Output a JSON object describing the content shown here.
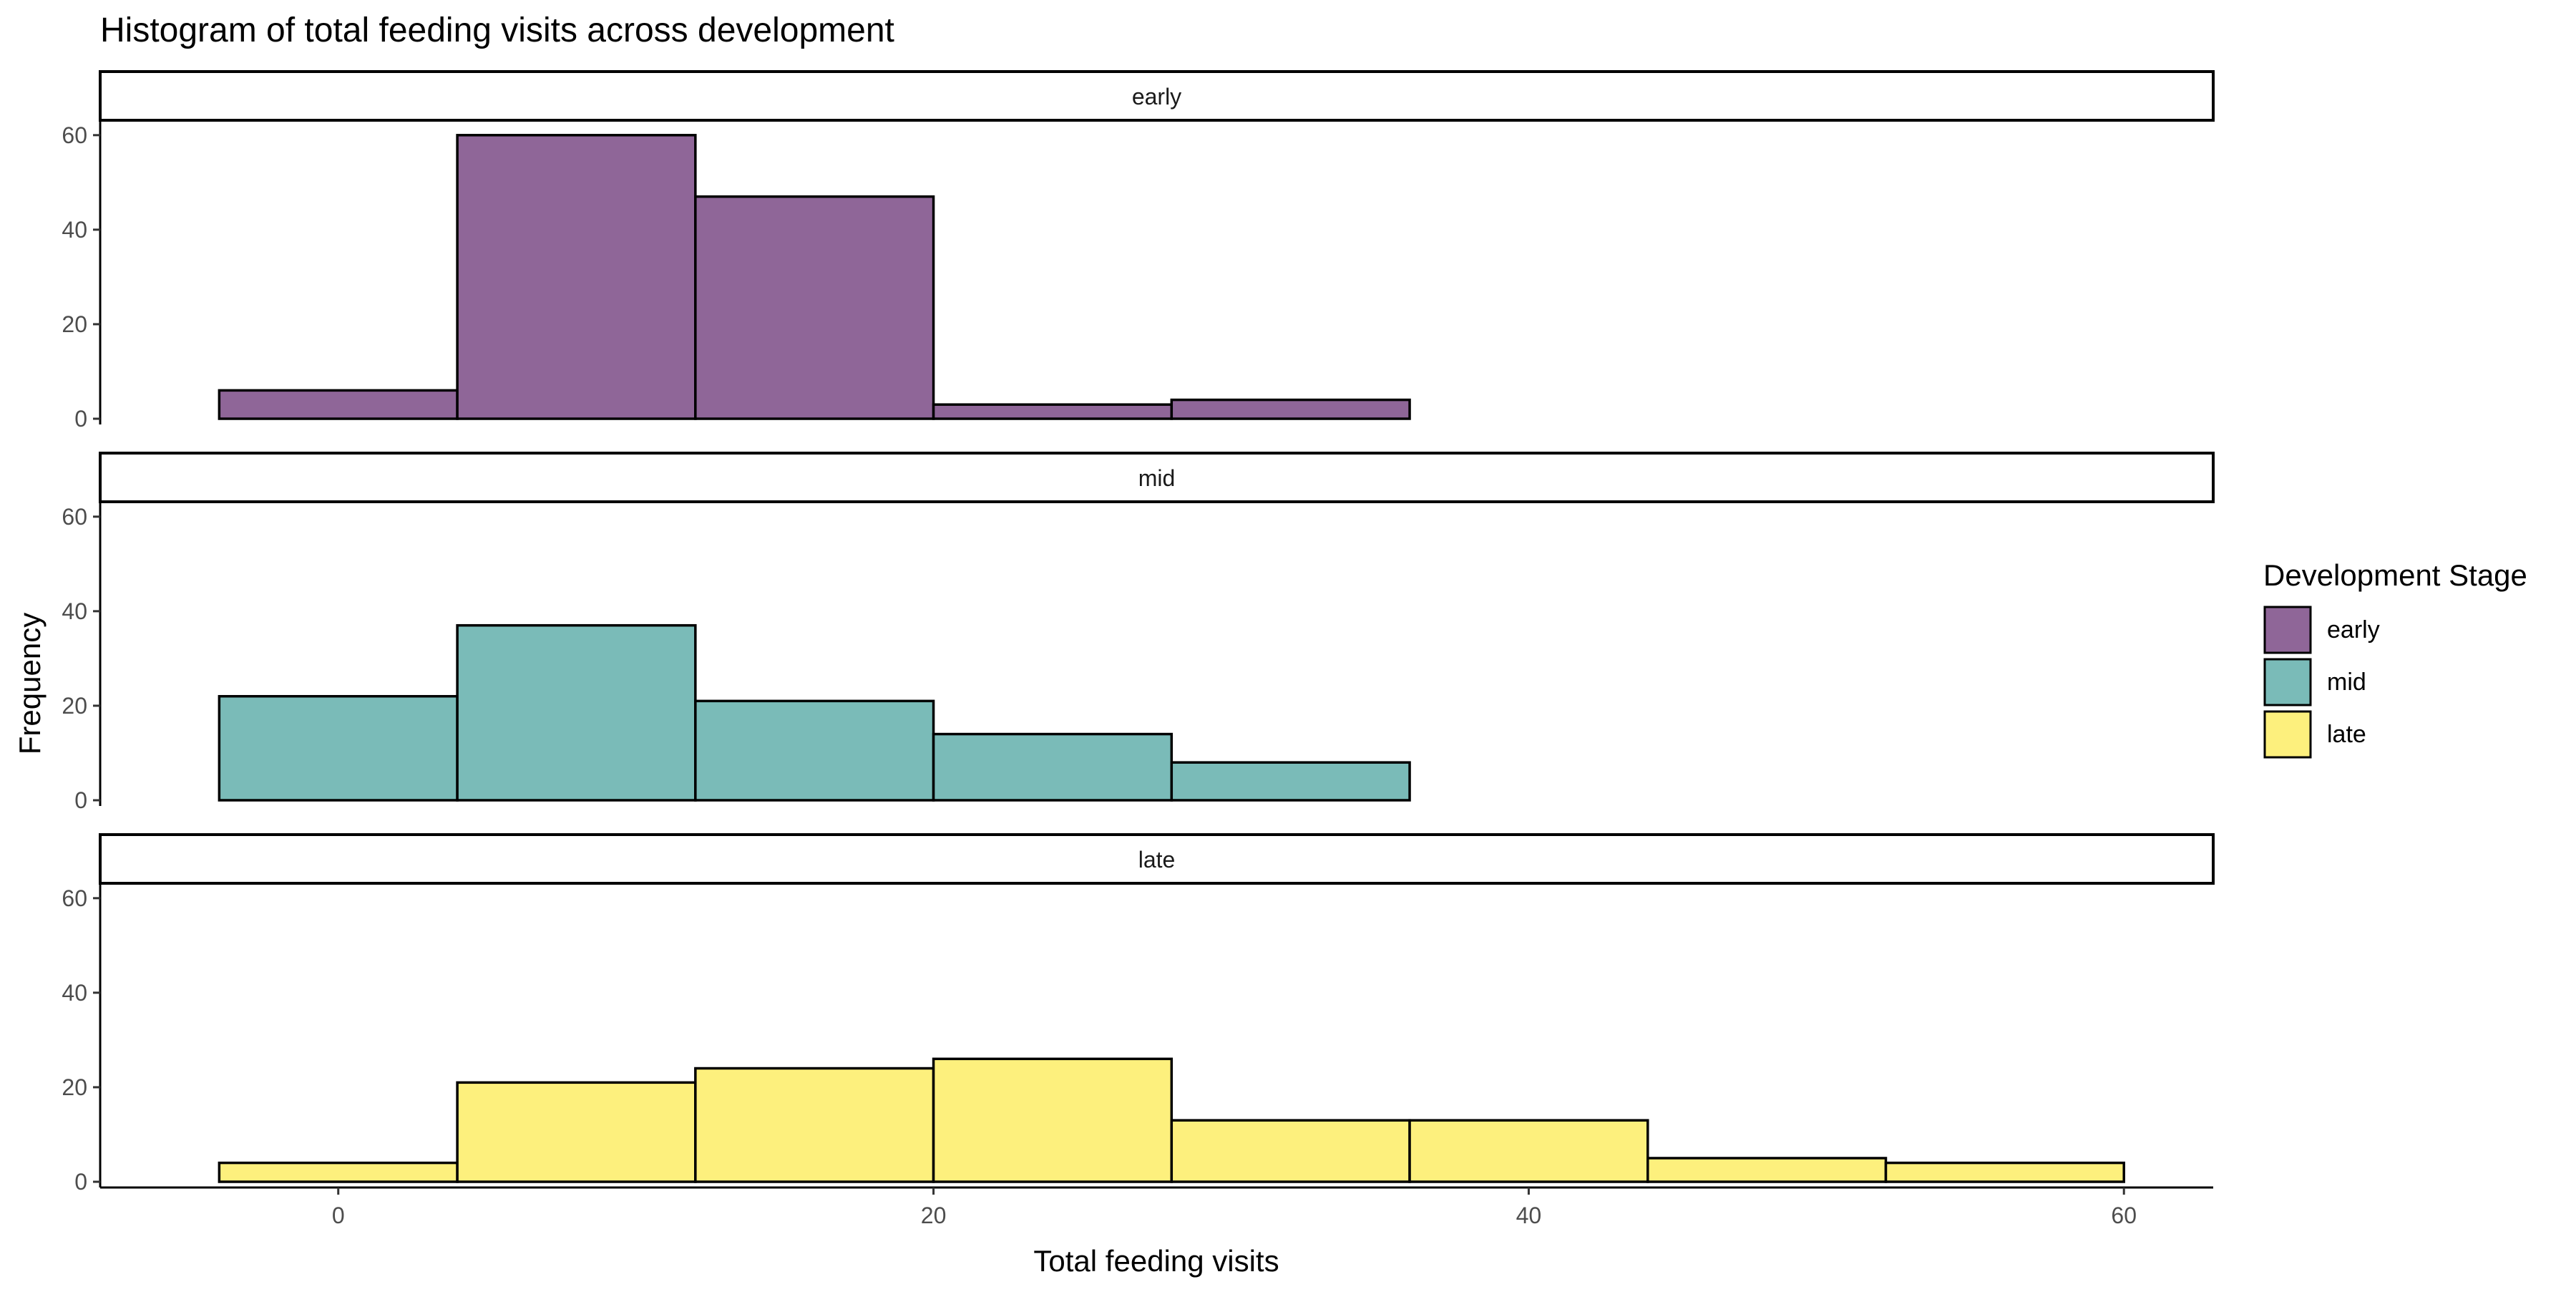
{
  "chart_data": {
    "type": "bar",
    "title": "Histogram of total feeding visits across development",
    "xlabel": "Total feeding visits",
    "ylabel": "Frequency",
    "xlim": [
      -8,
      63
    ],
    "ylim": [
      0,
      60
    ],
    "x_ticks": [
      0,
      20,
      40,
      60
    ],
    "y_ticks": [
      0,
      20,
      40,
      60
    ],
    "bin_width": 8,
    "legend": {
      "title": "Development Stage",
      "position": "right",
      "entries": [
        "early",
        "mid",
        "late"
      ]
    },
    "series": [
      {
        "name": "early",
        "color": "#8F6698",
        "bins": [
          {
            "start": -4,
            "end": 4,
            "count": 6
          },
          {
            "start": 4,
            "end": 12,
            "count": 60
          },
          {
            "start": 12,
            "end": 20,
            "count": 47
          },
          {
            "start": 20,
            "end": 28,
            "count": 3
          },
          {
            "start": 28,
            "end": 36,
            "count": 4
          },
          {
            "start": 36,
            "end": 44,
            "count": 0
          },
          {
            "start": 44,
            "end": 52,
            "count": 0
          },
          {
            "start": 52,
            "end": 60,
            "count": 0
          }
        ]
      },
      {
        "name": "mid",
        "color": "#7ABBB8",
        "bins": [
          {
            "start": -4,
            "end": 4,
            "count": 22
          },
          {
            "start": 4,
            "end": 12,
            "count": 37
          },
          {
            "start": 12,
            "end": 20,
            "count": 21
          },
          {
            "start": 20,
            "end": 28,
            "count": 14
          },
          {
            "start": 28,
            "end": 36,
            "count": 8
          },
          {
            "start": 36,
            "end": 44,
            "count": 0
          },
          {
            "start": 44,
            "end": 52,
            "count": 0
          },
          {
            "start": 52,
            "end": 60,
            "count": 0
          }
        ]
      },
      {
        "name": "late",
        "color": "#FDF07D",
        "bins": [
          {
            "start": -4,
            "end": 4,
            "count": 4
          },
          {
            "start": 4,
            "end": 12,
            "count": 21
          },
          {
            "start": 12,
            "end": 20,
            "count": 24
          },
          {
            "start": 20,
            "end": 28,
            "count": 26
          },
          {
            "start": 28,
            "end": 36,
            "count": 13
          },
          {
            "start": 36,
            "end": 44,
            "count": 13
          },
          {
            "start": 44,
            "end": 52,
            "count": 5
          },
          {
            "start": 52,
            "end": 60,
            "count": 4
          }
        ]
      }
    ]
  }
}
